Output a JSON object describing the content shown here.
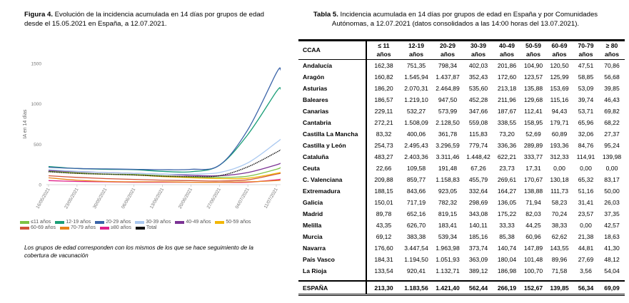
{
  "figure": {
    "label": "Figura 4.",
    "caption": " Evolución de la incidencia acumulada en 14 días por grupos de edad desde el 15.05.2021 en España, a 12.07.2021.",
    "note": "Los grupos de edad corresponden con los mismos de los que se hace seguimiento de la cobertura de vacunación"
  },
  "chart_data": {
    "type": "line",
    "title": "",
    "xlabel": "",
    "ylabel": "IA en 14 días",
    "ylim": [
      0,
      1500
    ],
    "yticks": [
      "0",
      "500",
      "1000",
      "1500"
    ],
    "yticks_values": [
      0,
      500,
      1000,
      1500
    ],
    "xticks": [
      "16/05/2021",
      "23/05/2021",
      "30/05/2021",
      "06/06/2021",
      "13/06/2021",
      "20/06/2021",
      "27/06/2021",
      "04/07/2021",
      "11/07/2021"
    ],
    "x": [
      "16/05/2021",
      "23/05/2021",
      "30/05/2021",
      "06/06/2021",
      "13/06/2021",
      "20/06/2021",
      "27/06/2021",
      "04/07/2021",
      "11/07/2021",
      "12/07/2021"
    ],
    "legend_position": "bottom",
    "series": [
      {
        "name": "≤11 años",
        "color": "#7dc243",
        "values": [
          165,
          145,
          130,
          125,
          110,
          95,
          90,
          105,
          190,
          213
        ]
      },
      {
        "name": "12-19 años",
        "color": "#1a9e77",
        "values": [
          225,
          200,
          190,
          185,
          165,
          160,
          240,
          620,
          1150,
          1184
        ]
      },
      {
        "name": "20-29 años",
        "color": "#3a63a8",
        "values": [
          215,
          200,
          195,
          190,
          185,
          190,
          240,
          680,
          1380,
          1421
        ]
      },
      {
        "name": "30-39 años",
        "color": "#a9c8f0",
        "values": [
          185,
          165,
          150,
          140,
          130,
          130,
          150,
          270,
          520,
          562
        ]
      },
      {
        "name": "40-49 años",
        "color": "#7b3294",
        "values": [
          175,
          160,
          150,
          140,
          130,
          115,
          110,
          150,
          245,
          266
        ]
      },
      {
        "name": "50-59 años",
        "color": "#f2b705",
        "values": [
          165,
          140,
          130,
          120,
          100,
          85,
          75,
          80,
          140,
          153
        ]
      },
      {
        "name": "60-69 años",
        "color": "#d0533a",
        "values": [
          110,
          90,
          75,
          65,
          55,
          50,
          45,
          60,
          130,
          140
        ]
      },
      {
        "name": "70-79 años",
        "color": "#e8841a",
        "values": [
          85,
          55,
          40,
          35,
          35,
          30,
          30,
          35,
          50,
          56
        ]
      },
      {
        "name": "≥80 años",
        "color": "#e0218a",
        "values": [
          50,
          40,
          35,
          30,
          30,
          30,
          30,
          30,
          60,
          69
        ]
      },
      {
        "name": "Total",
        "color": "#111111",
        "dashed": true,
        "values": [
          160,
          140,
          130,
          120,
          105,
          100,
          110,
          220,
          400,
          430
        ]
      }
    ]
  },
  "table": {
    "label": "Tabla 5.",
    "caption": " Incidencia acumulada en 14 días por grupos de edad en España y por Comunidades Autónomas, a 12.07.2021 (datos consolidados a las 14:00 horas del 13.07.2021).",
    "headers": [
      {
        "l1": "CCAA",
        "l2": ""
      },
      {
        "l1": "≤ 11",
        "l2": "años"
      },
      {
        "l1": "12-19",
        "l2": "años"
      },
      {
        "l1": "20-29",
        "l2": "años"
      },
      {
        "l1": "30-39",
        "l2": "años"
      },
      {
        "l1": "40-49",
        "l2": "años"
      },
      {
        "l1": "50-59",
        "l2": "años"
      },
      {
        "l1": "60-69",
        "l2": "años"
      },
      {
        "l1": "70-79",
        "l2": "años"
      },
      {
        "l1": "≥ 80",
        "l2": "años"
      }
    ],
    "rows": [
      [
        "Andalucía",
        "162,38",
        "751,35",
        "798,34",
        "402,03",
        "201,86",
        "104,90",
        "120,50",
        "47,51",
        "70,86"
      ],
      [
        "Aragón",
        "160,82",
        "1.545,94",
        "1.437,87",
        "352,43",
        "172,60",
        "123,57",
        "125,99",
        "58,85",
        "56,68"
      ],
      [
        "Asturias",
        "186,20",
        "2.070,31",
        "2.464,89",
        "535,60",
        "213,18",
        "135,88",
        "153,69",
        "53,09",
        "39,85"
      ],
      [
        "Baleares",
        "186,57",
        "1.219,10",
        "947,50",
        "452,28",
        "211,96",
        "129,68",
        "115,16",
        "39,74",
        "46,43"
      ],
      [
        "Canarias",
        "229,11",
        "532,27",
        "573,99",
        "347,66",
        "187,67",
        "112,41",
        "94,43",
        "53,71",
        "69,82"
      ],
      [
        "Cantabria",
        "272,21",
        "1.508,09",
        "2.128,50",
        "559,08",
        "338,55",
        "158,95",
        "179,71",
        "65,96",
        "68,22"
      ],
      [
        "Castilla La Mancha",
        "83,32",
        "400,06",
        "361,78",
        "115,83",
        "73,20",
        "52,69",
        "60,89",
        "32,06",
        "27,37"
      ],
      [
        "Castilla y León",
        "254,73",
        "2.495,43",
        "3.296,59",
        "779,74",
        "336,36",
        "289,89",
        "193,36",
        "84,76",
        "95,24"
      ],
      [
        "Cataluña",
        "483,27",
        "2.403,36",
        "3.311,46",
        "1.448,42",
        "622,21",
        "333,77",
        "312,33",
        "114,91",
        "139,98"
      ],
      [
        "Ceuta",
        "22,66",
        "109,58",
        "191,48",
        "67,26",
        "23,73",
        "17,31",
        "0,00",
        "0,00",
        "0,00"
      ],
      [
        "C. Valenciana",
        "209,88",
        "859,77",
        "1.158,83",
        "455,79",
        "269,61",
        "170,67",
        "130,18",
        "65,32",
        "83,17"
      ],
      [
        "Extremadura",
        "188,15",
        "843,66",
        "923,05",
        "332,64",
        "164,27",
        "138,88",
        "111,73",
        "51,16",
        "50,00"
      ],
      [
        "Galicia",
        "150,01",
        "717,19",
        "782,32",
        "298,69",
        "136,05",
        "71,94",
        "58,23",
        "31,41",
        "26,03"
      ],
      [
        "Madrid",
        "89,78",
        "652,16",
        "819,15",
        "343,08",
        "175,22",
        "82,03",
        "70,24",
        "23,57",
        "37,35"
      ],
      [
        "Melilla",
        "43,35",
        "626,70",
        "183,41",
        "140,11",
        "33,33",
        "44,25",
        "38,33",
        "0,00",
        "42,57"
      ],
      [
        "Murcia",
        "69,12",
        "383,38",
        "539,34",
        "185,16",
        "85,38",
        "60,96",
        "62,62",
        "21,38",
        "18,63"
      ],
      [
        "Navarra",
        "176,60",
        "3.447,54",
        "1.963,98",
        "373,74",
        "140,74",
        "147,89",
        "143,55",
        "44,81",
        "41,30"
      ],
      [
        "País Vasco",
        "184,31",
        "1.194,50",
        "1.051,93",
        "363,09",
        "180,04",
        "101,48",
        "89,96",
        "27,69",
        "48,12"
      ],
      [
        "La Rioja",
        "133,54",
        "920,41",
        "1.132,71",
        "389,12",
        "186,98",
        "100,70",
        "71,58",
        "3,56",
        "54,04"
      ]
    ],
    "total": [
      "ESPAÑA",
      "213,30",
      "1.183,56",
      "1.421,40",
      "562,44",
      "266,19",
      "152,67",
      "139,85",
      "56,34",
      "69,09"
    ]
  }
}
